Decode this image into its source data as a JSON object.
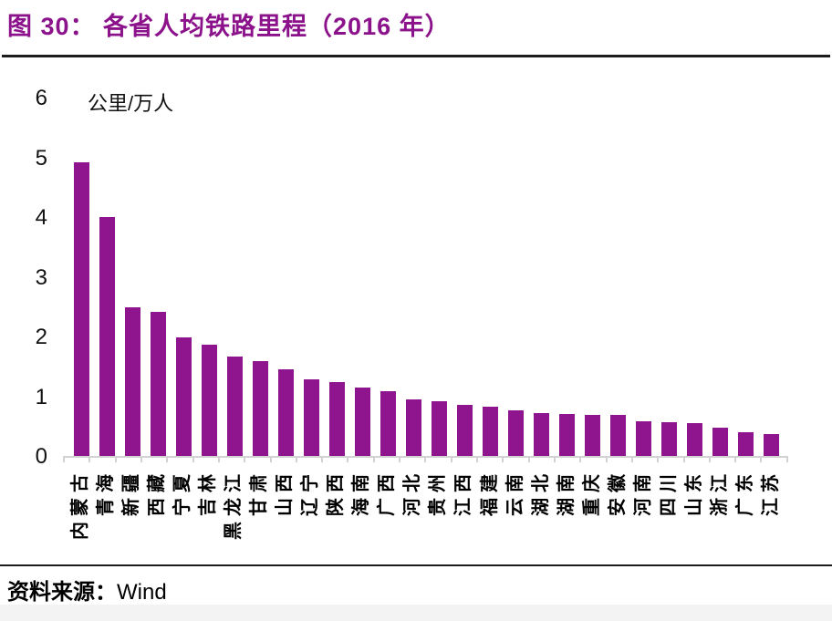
{
  "title": "图 30： 各省人均铁路里程（2016 年）",
  "unit_label": "公里/万人",
  "source": {
    "label": "资料来源：",
    "value": "Wind"
  },
  "colors": {
    "bar": "#8E158E",
    "title": "#8B128B",
    "axis": "#D2D2D2",
    "divider": "#1C1C1C",
    "footer_band": "#F3F3F3"
  },
  "chart_data": {
    "type": "bar",
    "title": "图 30： 各省人均铁路里程（2016 年）",
    "xlabel": "",
    "ylabel": "公里/万人",
    "ylim": [
      0,
      6
    ],
    "yticks": [
      0,
      1,
      2,
      3,
      4,
      5,
      6
    ],
    "grid": false,
    "legend_position": "none",
    "categories": [
      "内蒙古",
      "青海",
      "新疆",
      "西藏",
      "宁夏",
      "吉林",
      "黑龙江",
      "甘肃",
      "山西",
      "辽宁",
      "陕西",
      "海南",
      "广西",
      "河北",
      "贵州",
      "江西",
      "福建",
      "云南",
      "湖北",
      "湖南",
      "重庆",
      "安徽",
      "河南",
      "四川",
      "山东",
      "浙江",
      "广东",
      "江苏"
    ],
    "values": [
      4.92,
      4.0,
      2.49,
      2.41,
      1.98,
      1.87,
      1.66,
      1.59,
      1.45,
      1.28,
      1.23,
      1.14,
      1.08,
      0.95,
      0.91,
      0.86,
      0.82,
      0.77,
      0.72,
      0.7,
      0.69,
      0.68,
      0.58,
      0.57,
      0.55,
      0.48,
      0.4,
      0.36
    ]
  }
}
